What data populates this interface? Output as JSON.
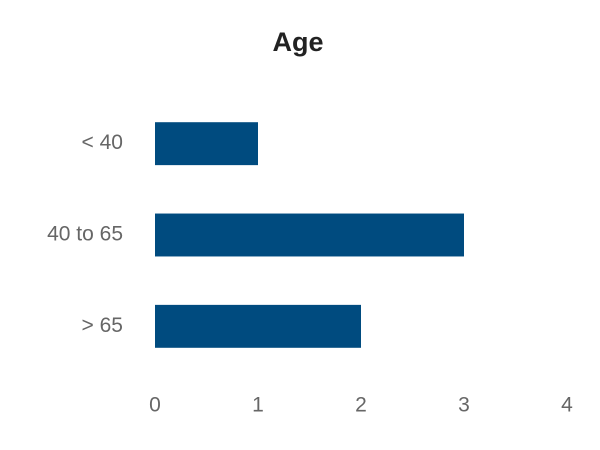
{
  "chart_data": {
    "type": "bar",
    "orientation": "horizontal",
    "title": "Age",
    "categories": [
      "< 40",
      "40 to 65",
      "> 65"
    ],
    "values": [
      1,
      3,
      2
    ],
    "color": "#004b7f",
    "xlim": [
      0,
      4
    ],
    "xticks": [
      0,
      1,
      2,
      3,
      4
    ],
    "grid": false
  }
}
